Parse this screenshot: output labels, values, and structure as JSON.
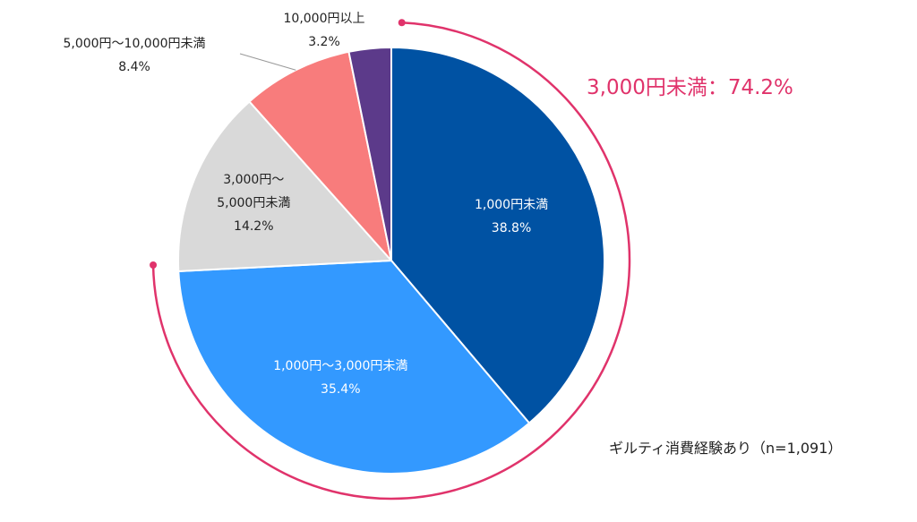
{
  "chart_data": {
    "type": "pie",
    "categories": [
      "1,000円未満",
      "1,000円～3,000円未満",
      "3,000円～\n5,000円未満",
      "5,000円～10,000円未満",
      "10,000円以上"
    ],
    "values": [
      38.8,
      35.4,
      14.2,
      8.4,
      3.2
    ],
    "value_labels": [
      "38.8%",
      "35.4%",
      "14.2%",
      "8.4%",
      "3.2%"
    ],
    "colors": [
      "#0052a3",
      "#3399ff",
      "#d9d9d9",
      "#f87c7c",
      "#5c3a8a"
    ],
    "annotation": "3,000円未満：74.2%",
    "note": "ギルティ消費経験あり（n=1,091）"
  }
}
